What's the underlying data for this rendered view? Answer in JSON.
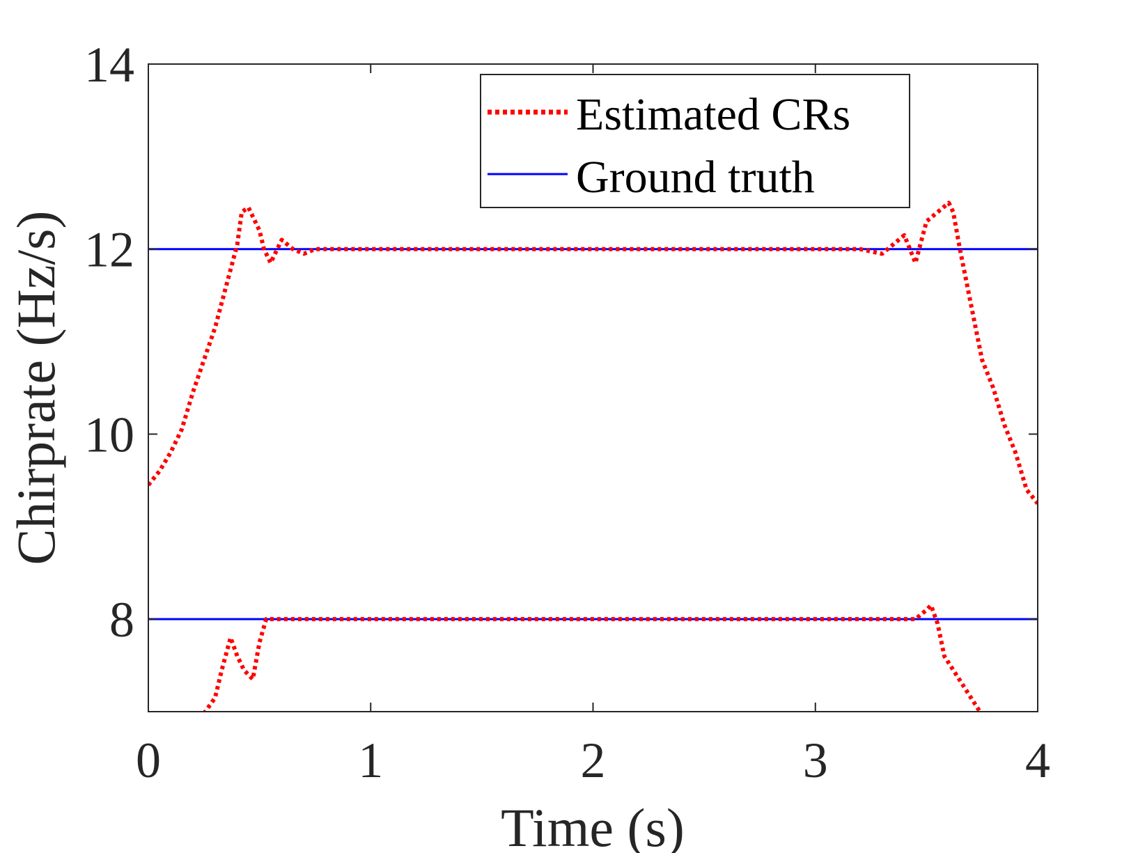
{
  "chart_data": {
    "type": "line",
    "title": "",
    "xlabel": "Time (s)",
    "ylabel": "Chirprate (Hz/s)",
    "xlim": [
      0,
      4
    ],
    "ylim": [
      7,
      14
    ],
    "xticks": [
      0,
      1,
      2,
      3,
      4
    ],
    "yticks": [
      8,
      10,
      12,
      14
    ],
    "xtick_labels": [
      "0",
      "1",
      "2",
      "3",
      "4"
    ],
    "ytick_labels": [
      "8",
      "10",
      "12",
      "14"
    ],
    "grid": false,
    "legend_position": "top-right",
    "colors": {
      "estimated": "#ff0000",
      "ground_truth": "#0000ff",
      "axis": "#262626"
    },
    "series": [
      {
        "name": "Estimated CRs",
        "style": "dotted",
        "color": "#ff0000",
        "legend": true,
        "x": [
          0.0,
          0.05,
          0.1,
          0.15,
          0.2,
          0.25,
          0.3,
          0.35,
          0.4,
          0.42,
          0.45,
          0.5,
          0.52,
          0.55,
          0.6,
          0.65,
          0.7,
          0.75,
          0.8,
          3.2,
          3.3,
          3.35,
          3.4,
          3.45,
          3.5,
          3.55,
          3.6,
          3.62,
          3.65,
          3.7,
          3.75,
          3.8,
          3.85,
          3.9,
          3.95,
          4.0
        ],
        "y": [
          9.45,
          9.6,
          9.8,
          10.05,
          10.45,
          10.8,
          11.15,
          11.6,
          12.05,
          12.4,
          12.45,
          12.2,
          12.0,
          11.85,
          12.1,
          12.0,
          11.95,
          12.0,
          12.0,
          12.0,
          11.95,
          12.05,
          12.15,
          11.85,
          12.3,
          12.4,
          12.5,
          12.4,
          12.0,
          11.4,
          10.8,
          10.5,
          10.1,
          9.8,
          9.4,
          9.25
        ]
      },
      {
        "name": "Estimated CRs (lower)",
        "style": "dotted",
        "color": "#ff0000",
        "legend": false,
        "x": [
          0.25,
          0.3,
          0.33,
          0.37,
          0.4,
          0.43,
          0.47,
          0.5,
          0.53,
          0.6,
          1.0,
          2.0,
          3.0,
          3.45,
          3.5,
          3.52,
          3.55,
          3.58,
          3.62,
          3.66,
          3.7,
          3.74
        ],
        "y": [
          6.98,
          7.15,
          7.45,
          7.8,
          7.6,
          7.45,
          7.35,
          7.75,
          8.0,
          8.0,
          8.0,
          8.0,
          8.0,
          8.0,
          8.1,
          8.15,
          7.95,
          7.6,
          7.45,
          7.3,
          7.15,
          7.0
        ]
      },
      {
        "name": "Ground truth",
        "style": "solid",
        "color": "#0000ff",
        "legend": true,
        "x": [
          0,
          4
        ],
        "y": [
          12,
          12
        ]
      },
      {
        "name": "Ground truth (lower)",
        "style": "solid",
        "color": "#0000ff",
        "legend": false,
        "x": [
          0,
          4
        ],
        "y": [
          8,
          8
        ]
      }
    ]
  }
}
